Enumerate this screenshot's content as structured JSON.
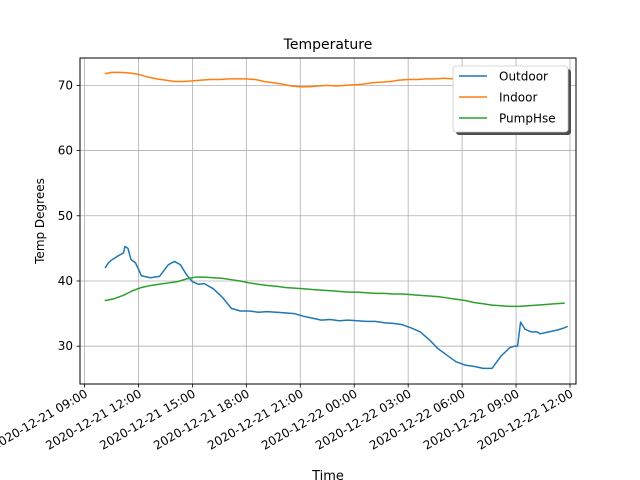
{
  "chart_data": {
    "type": "line",
    "title": "Temperature",
    "xlabel": "Time",
    "ylabel": "Temp Degrees",
    "xlim": [
      "2020-12-21 08:45",
      "2020-12-22 12:20"
    ],
    "ylim": [
      24.2,
      74.2
    ],
    "grid": true,
    "legend_position": "top-right",
    "x_ticks": [
      "2020-12-21 09:00",
      "2020-12-21 12:00",
      "2020-12-21 15:00",
      "2020-12-21 18:00",
      "2020-12-21 21:00",
      "2020-12-22 00:00",
      "2020-12-22 03:00",
      "2020-12-22 06:00",
      "2020-12-22 09:00",
      "2020-12-22 12:00"
    ],
    "x_tick_labels": [
      "2020-12-21 09:00",
      "2020-12-21 12:00",
      "2020-12-21 15:00",
      "2020-12-21 18:00",
      "2020-12-21 21:00",
      "2020-12-22 00:00",
      "2020-12-22 03:00",
      "2020-12-22 06:00",
      "2020-12-22 09:00",
      "2020-12-22 12:00"
    ],
    "y_ticks": [
      30,
      40,
      50,
      60,
      70
    ],
    "y_tick_labels": [
      "30",
      "40",
      "50",
      "60",
      "70"
    ],
    "series": [
      {
        "name": "Outdoor",
        "color": "#1f77b4",
        "points": [
          [
            "2020-12-21 10:10",
            42.1
          ],
          [
            "2020-12-21 10:20",
            42.8
          ],
          [
            "2020-12-21 10:30",
            43.2
          ],
          [
            "2020-12-21 10:50",
            43.8
          ],
          [
            "2020-12-21 11:10",
            44.3
          ],
          [
            "2020-12-21 11:15",
            45.3
          ],
          [
            "2020-12-21 11:25",
            45.0
          ],
          [
            "2020-12-21 11:35",
            43.3
          ],
          [
            "2020-12-21 11:50",
            42.8
          ],
          [
            "2020-12-21 12:10",
            40.8
          ],
          [
            "2020-12-21 12:40",
            40.5
          ],
          [
            "2020-12-21 13:10",
            40.7
          ],
          [
            "2020-12-21 13:40",
            42.5
          ],
          [
            "2020-12-21 14:00",
            43.0
          ],
          [
            "2020-12-21 14:20",
            42.5
          ],
          [
            "2020-12-21 14:40",
            41.0
          ],
          [
            "2020-12-21 15:00",
            39.9
          ],
          [
            "2020-12-21 15:20",
            39.5
          ],
          [
            "2020-12-21 15:40",
            39.6
          ],
          [
            "2020-12-21 16:10",
            38.8
          ],
          [
            "2020-12-21 16:40",
            37.5
          ],
          [
            "2020-12-21 17:10",
            35.8
          ],
          [
            "2020-12-21 17:40",
            35.4
          ],
          [
            "2020-12-21 18:10",
            35.4
          ],
          [
            "2020-12-21 18:40",
            35.2
          ],
          [
            "2020-12-21 19:10",
            35.3
          ],
          [
            "2020-12-21 19:40",
            35.2
          ],
          [
            "2020-12-21 20:10",
            35.1
          ],
          [
            "2020-12-21 20:40",
            35.0
          ],
          [
            "2020-12-21 21:10",
            34.6
          ],
          [
            "2020-12-21 21:40",
            34.3
          ],
          [
            "2020-12-21 22:10",
            34.0
          ],
          [
            "2020-12-21 22:40",
            34.1
          ],
          [
            "2020-12-21 23:10",
            33.9
          ],
          [
            "2020-12-21 23:40",
            34.0
          ],
          [
            "2020-12-22 00:10",
            33.9
          ],
          [
            "2020-12-22 00:40",
            33.8
          ],
          [
            "2020-12-22 01:10",
            33.8
          ],
          [
            "2020-12-22 01:40",
            33.6
          ],
          [
            "2020-12-22 02:10",
            33.5
          ],
          [
            "2020-12-22 02:40",
            33.3
          ],
          [
            "2020-12-22 03:10",
            32.8
          ],
          [
            "2020-12-22 03:40",
            32.2
          ],
          [
            "2020-12-22 04:10",
            31.0
          ],
          [
            "2020-12-22 04:40",
            29.6
          ],
          [
            "2020-12-22 05:10",
            28.6
          ],
          [
            "2020-12-22 05:40",
            27.6
          ],
          [
            "2020-12-22 06:10",
            27.1
          ],
          [
            "2020-12-22 06:40",
            26.9
          ],
          [
            "2020-12-22 07:10",
            26.6
          ],
          [
            "2020-12-22 07:40",
            26.6
          ],
          [
            "2020-12-22 08:10",
            28.5
          ],
          [
            "2020-12-22 08:40",
            29.8
          ],
          [
            "2020-12-22 08:55",
            30.0
          ],
          [
            "2020-12-22 09:05",
            30.0
          ],
          [
            "2020-12-22 09:15",
            33.7
          ],
          [
            "2020-12-22 09:30",
            32.6
          ],
          [
            "2020-12-22 09:50",
            32.2
          ],
          [
            "2020-12-22 10:10",
            32.2
          ],
          [
            "2020-12-22 10:20",
            31.9
          ],
          [
            "2020-12-22 10:50",
            32.2
          ],
          [
            "2020-12-22 11:20",
            32.5
          ],
          [
            "2020-12-22 11:40",
            32.8
          ],
          [
            "2020-12-22 11:50",
            33.0
          ]
        ]
      },
      {
        "name": "Indoor",
        "color": "#ff7f0e",
        "points": [
          [
            "2020-12-21 10:10",
            71.8
          ],
          [
            "2020-12-21 10:30",
            72.0
          ],
          [
            "2020-12-21 11:00",
            72.0
          ],
          [
            "2020-12-21 11:30",
            71.9
          ],
          [
            "2020-12-21 12:00",
            71.7
          ],
          [
            "2020-12-21 12:30",
            71.3
          ],
          [
            "2020-12-21 13:00",
            71.0
          ],
          [
            "2020-12-21 13:30",
            70.8
          ],
          [
            "2020-12-21 14:00",
            70.6
          ],
          [
            "2020-12-21 14:30",
            70.6
          ],
          [
            "2020-12-21 15:00",
            70.7
          ],
          [
            "2020-12-21 15:30",
            70.8
          ],
          [
            "2020-12-21 16:00",
            70.9
          ],
          [
            "2020-12-21 16:30",
            70.9
          ],
          [
            "2020-12-21 17:00",
            71.0
          ],
          [
            "2020-12-21 17:30",
            71.0
          ],
          [
            "2020-12-21 18:00",
            71.0
          ],
          [
            "2020-12-21 18:30",
            70.9
          ],
          [
            "2020-12-21 19:00",
            70.6
          ],
          [
            "2020-12-21 19:30",
            70.4
          ],
          [
            "2020-12-21 20:00",
            70.2
          ],
          [
            "2020-12-21 20:30",
            69.9
          ],
          [
            "2020-12-21 21:00",
            69.8
          ],
          [
            "2020-12-21 21:30",
            69.8
          ],
          [
            "2020-12-21 22:00",
            69.9
          ],
          [
            "2020-12-21 22:30",
            70.0
          ],
          [
            "2020-12-21 23:00",
            69.9
          ],
          [
            "2020-12-21 23:30",
            70.0
          ],
          [
            "2020-12-22 00:00",
            70.1
          ],
          [
            "2020-12-22 00:30",
            70.2
          ],
          [
            "2020-12-22 01:00",
            70.4
          ],
          [
            "2020-12-22 01:30",
            70.5
          ],
          [
            "2020-12-22 02:00",
            70.6
          ],
          [
            "2020-12-22 02:30",
            70.8
          ],
          [
            "2020-12-22 03:00",
            70.9
          ],
          [
            "2020-12-22 03:30",
            70.9
          ],
          [
            "2020-12-22 04:00",
            71.0
          ],
          [
            "2020-12-22 04:30",
            71.0
          ],
          [
            "2020-12-22 05:00",
            71.1
          ],
          [
            "2020-12-22 05:30",
            71.0
          ],
          [
            "2020-12-22 06:00",
            71.0
          ]
        ]
      },
      {
        "name": "PumpHse",
        "color": "#2ca02c",
        "points": [
          [
            "2020-12-21 10:10",
            37.0
          ],
          [
            "2020-12-21 10:40",
            37.3
          ],
          [
            "2020-12-21 11:10",
            37.8
          ],
          [
            "2020-12-21 11:40",
            38.5
          ],
          [
            "2020-12-21 12:10",
            39.0
          ],
          [
            "2020-12-21 12:40",
            39.3
          ],
          [
            "2020-12-21 13:10",
            39.5
          ],
          [
            "2020-12-21 13:40",
            39.7
          ],
          [
            "2020-12-21 14:10",
            39.9
          ],
          [
            "2020-12-21 14:40",
            40.3
          ],
          [
            "2020-12-21 15:10",
            40.6
          ],
          [
            "2020-12-21 15:40",
            40.6
          ],
          [
            "2020-12-21 16:10",
            40.5
          ],
          [
            "2020-12-21 16:40",
            40.4
          ],
          [
            "2020-12-21 17:10",
            40.2
          ],
          [
            "2020-12-21 17:40",
            40.0
          ],
          [
            "2020-12-21 18:10",
            39.7
          ],
          [
            "2020-12-21 18:40",
            39.5
          ],
          [
            "2020-12-21 19:10",
            39.3
          ],
          [
            "2020-12-21 19:40",
            39.2
          ],
          [
            "2020-12-21 20:10",
            39.0
          ],
          [
            "2020-12-21 20:40",
            38.9
          ],
          [
            "2020-12-21 21:10",
            38.8
          ],
          [
            "2020-12-21 21:40",
            38.7
          ],
          [
            "2020-12-21 22:10",
            38.6
          ],
          [
            "2020-12-21 22:40",
            38.5
          ],
          [
            "2020-12-21 23:10",
            38.4
          ],
          [
            "2020-12-21 23:40",
            38.3
          ],
          [
            "2020-12-22 00:10",
            38.3
          ],
          [
            "2020-12-22 00:40",
            38.2
          ],
          [
            "2020-12-22 01:10",
            38.1
          ],
          [
            "2020-12-22 01:40",
            38.1
          ],
          [
            "2020-12-22 02:10",
            38.0
          ],
          [
            "2020-12-22 02:40",
            38.0
          ],
          [
            "2020-12-22 03:10",
            37.9
          ],
          [
            "2020-12-22 03:40",
            37.8
          ],
          [
            "2020-12-22 04:10",
            37.7
          ],
          [
            "2020-12-22 04:40",
            37.6
          ],
          [
            "2020-12-22 05:10",
            37.4
          ],
          [
            "2020-12-22 05:40",
            37.2
          ],
          [
            "2020-12-22 06:10",
            37.0
          ],
          [
            "2020-12-22 06:40",
            36.7
          ],
          [
            "2020-12-22 07:10",
            36.5
          ],
          [
            "2020-12-22 07:40",
            36.3
          ],
          [
            "2020-12-22 08:10",
            36.2
          ],
          [
            "2020-12-22 08:40",
            36.1
          ],
          [
            "2020-12-22 09:10",
            36.1
          ],
          [
            "2020-12-22 09:40",
            36.2
          ],
          [
            "2020-12-22 10:10",
            36.3
          ],
          [
            "2020-12-22 10:40",
            36.4
          ],
          [
            "2020-12-22 11:10",
            36.5
          ],
          [
            "2020-12-22 11:40",
            36.6
          ]
        ]
      }
    ]
  }
}
